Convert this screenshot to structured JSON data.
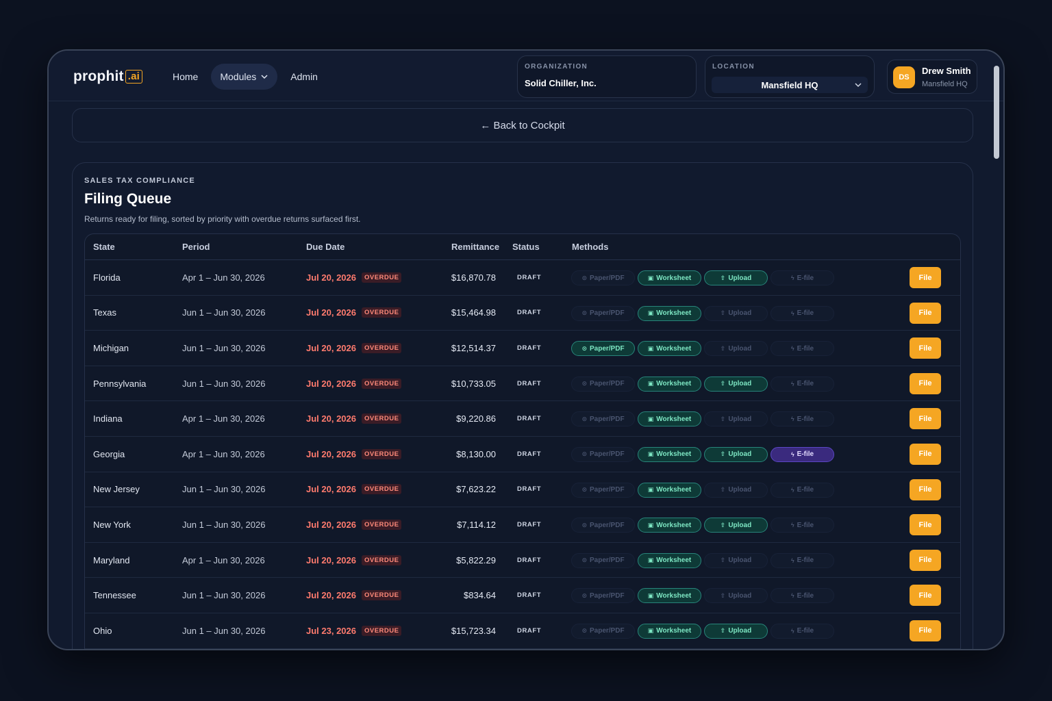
{
  "app": {
    "logo_text": "prophit",
    "logo_suffix": ".ai"
  },
  "nav": {
    "home": "Home",
    "modules": "Modules",
    "admin": "Admin"
  },
  "organization": {
    "label": "ORGANIZATION",
    "value": "Solid Chiller, Inc."
  },
  "location": {
    "label": "LOCATION",
    "value": "Mansfield HQ"
  },
  "user": {
    "initials": "DS",
    "name": "Drew Smith",
    "location": "Mansfield HQ"
  },
  "back_link": "← Back to Cockpit",
  "card": {
    "eyebrow": "SALES TAX COMPLIANCE",
    "title": "Filing Queue",
    "subtitle": "Returns ready for filing, sorted by priority with overdue returns surfaced first."
  },
  "table": {
    "columns": {
      "state": "State",
      "period": "Period",
      "due_date": "Due Date",
      "remittance": "Remittance",
      "status": "Status",
      "methods": "Methods"
    },
    "method_labels": {
      "paper": "Paper/PDF",
      "worksheet": "Worksheet",
      "upload": "Upload",
      "efile": "E-file"
    },
    "file_label": "File",
    "rows": [
      {
        "state": "Florida",
        "period": "Apr 1 – Jun 30, 2026",
        "due": "Jul 20, 2026",
        "flag": "OVERDUE",
        "amount": "$16,870.78",
        "status": "DRAFT",
        "paper": false,
        "worksheet": true,
        "upload": true,
        "efile": false
      },
      {
        "state": "Texas",
        "period": "Jun 1 – Jun 30, 2026",
        "due": "Jul 20, 2026",
        "flag": "OVERDUE",
        "amount": "$15,464.98",
        "status": "DRAFT",
        "paper": false,
        "worksheet": true,
        "upload": false,
        "efile": false
      },
      {
        "state": "Michigan",
        "period": "Jun 1 – Jun 30, 2026",
        "due": "Jul 20, 2026",
        "flag": "OVERDUE",
        "amount": "$12,514.37",
        "status": "DRAFT",
        "paper": true,
        "worksheet": true,
        "upload": false,
        "efile": false
      },
      {
        "state": "Pennsylvania",
        "period": "Jun 1 – Jun 30, 2026",
        "due": "Jul 20, 2026",
        "flag": "OVERDUE",
        "amount": "$10,733.05",
        "status": "DRAFT",
        "paper": false,
        "worksheet": true,
        "upload": true,
        "efile": false
      },
      {
        "state": "Indiana",
        "period": "Apr 1 – Jun 30, 2026",
        "due": "Jul 20, 2026",
        "flag": "OVERDUE",
        "amount": "$9,220.86",
        "status": "DRAFT",
        "paper": false,
        "worksheet": true,
        "upload": false,
        "efile": false
      },
      {
        "state": "Georgia",
        "period": "Apr 1 – Jun 30, 2026",
        "due": "Jul 20, 2026",
        "flag": "OVERDUE",
        "amount": "$8,130.00",
        "status": "DRAFT",
        "paper": false,
        "worksheet": true,
        "upload": true,
        "efile": true
      },
      {
        "state": "New Jersey",
        "period": "Jun 1 – Jun 30, 2026",
        "due": "Jul 20, 2026",
        "flag": "OVERDUE",
        "amount": "$7,623.22",
        "status": "DRAFT",
        "paper": false,
        "worksheet": true,
        "upload": false,
        "efile": false
      },
      {
        "state": "New York",
        "period": "Jun 1 – Jun 30, 2026",
        "due": "Jul 20, 2026",
        "flag": "OVERDUE",
        "amount": "$7,114.12",
        "status": "DRAFT",
        "paper": false,
        "worksheet": true,
        "upload": true,
        "efile": false
      },
      {
        "state": "Maryland",
        "period": "Apr 1 – Jun 30, 2026",
        "due": "Jul 20, 2026",
        "flag": "OVERDUE",
        "amount": "$5,822.29",
        "status": "DRAFT",
        "paper": false,
        "worksheet": true,
        "upload": false,
        "efile": false
      },
      {
        "state": "Tennessee",
        "period": "Jun 1 – Jun 30, 2026",
        "due": "Jul 20, 2026",
        "flag": "OVERDUE",
        "amount": "$834.64",
        "status": "DRAFT",
        "paper": false,
        "worksheet": true,
        "upload": false,
        "efile": false
      },
      {
        "state": "Ohio",
        "period": "Jun 1 – Jun 30, 2026",
        "due": "Jul 23, 2026",
        "flag": "OVERDUE",
        "amount": "$15,723.34",
        "status": "DRAFT",
        "paper": false,
        "worksheet": true,
        "upload": true,
        "efile": false
      }
    ]
  }
}
